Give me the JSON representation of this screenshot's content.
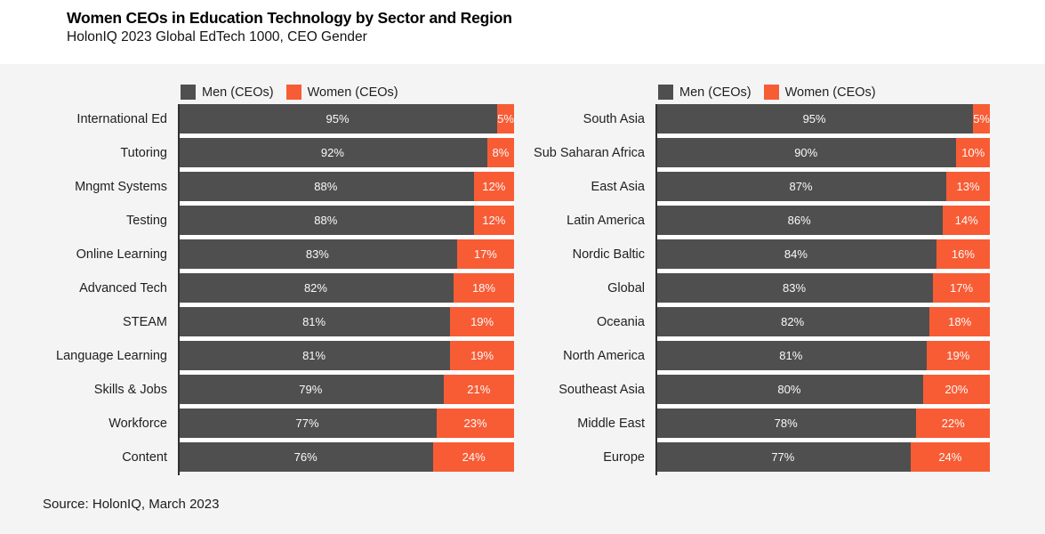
{
  "header": {
    "title": "Women CEOs in Education Technology by Sector and Region",
    "subtitle": "HolonIQ 2023 Global EdTech 1000, CEO Gender"
  },
  "legend": {
    "men_label": "Men (CEOs)",
    "women_label": "Women (CEOs)"
  },
  "colors": {
    "men": "#4f4f4f",
    "women": "#f85c35",
    "band_background": "#f4f4f4",
    "plot_background": "#ffffff",
    "axis": "#2f2f2f",
    "bar_text": "#fafafa",
    "text": "#1f1f1f"
  },
  "source": "Source: HolonIQ, March 2023",
  "chart_data": [
    {
      "type": "bar",
      "orientation": "horizontal",
      "stacked": true,
      "group": "By Sector",
      "value_suffix": "%",
      "xlim": [
        0,
        100
      ],
      "grid": false,
      "legend_position": "top",
      "categories": [
        "International Ed",
        "Tutoring",
        "Mngmt Systems",
        "Testing",
        "Online Learning",
        "Advanced Tech",
        "STEAM",
        "Language Learning",
        "Skills & Jobs",
        "Workforce",
        "Content"
      ],
      "series": [
        {
          "name": "Men (CEOs)",
          "values": [
            95,
            92,
            88,
            88,
            83,
            82,
            81,
            81,
            79,
            77,
            76
          ]
        },
        {
          "name": "Women (CEOs)",
          "values": [
            5,
            8,
            12,
            12,
            17,
            18,
            19,
            19,
            21,
            23,
            24
          ]
        }
      ]
    },
    {
      "type": "bar",
      "orientation": "horizontal",
      "stacked": true,
      "group": "By Region",
      "value_suffix": "%",
      "xlim": [
        0,
        100
      ],
      "grid": false,
      "legend_position": "top",
      "categories": [
        "South Asia",
        "Sub Saharan Africa",
        "East Asia",
        "Latin America",
        "Nordic Baltic",
        "Global",
        "Oceania",
        "North America",
        "Southeast Asia",
        "Middle East",
        "Europe"
      ],
      "series": [
        {
          "name": "Men (CEOs)",
          "values": [
            95,
            90,
            87,
            86,
            84,
            83,
            82,
            81,
            80,
            78,
            77
          ]
        },
        {
          "name": "Women (CEOs)",
          "values": [
            5,
            10,
            13,
            14,
            16,
            17,
            18,
            19,
            20,
            22,
            24
          ]
        }
      ]
    }
  ]
}
